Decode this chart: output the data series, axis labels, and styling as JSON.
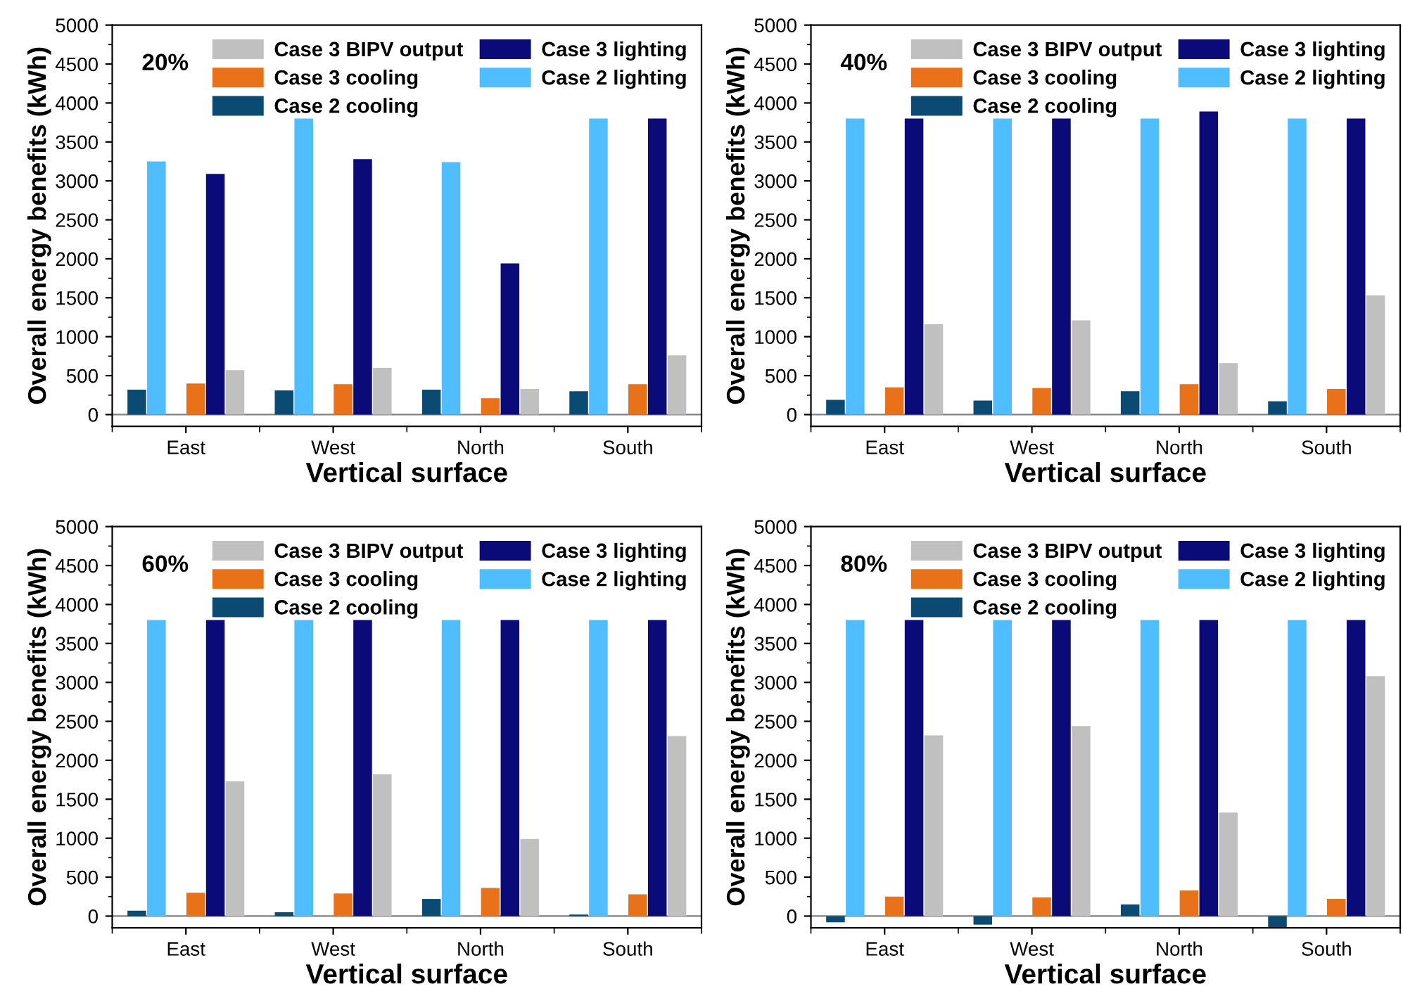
{
  "chart_data": [
    {
      "type": "bar",
      "annotations": [
        "20%"
      ],
      "xlabel": "Vertical surface",
      "ylabel": "Overall energy benefits (kWh)",
      "categories": [
        "East",
        "West",
        "North",
        "South"
      ],
      "series": [
        {
          "name": "Case 2 cooling",
          "color": "#0b4a72",
          "values": [
            320,
            310,
            320,
            300
          ]
        },
        {
          "name": "Case 2 lighting",
          "color": "#4fbdff",
          "values": [
            3250,
            3800,
            3240,
            3800
          ]
        },
        {
          "name": "Case 3 cooling",
          "color": "#e8711a",
          "values": [
            400,
            390,
            210,
            390
          ]
        },
        {
          "name": "Case 3 lighting",
          "color": "#0a0a78",
          "values": [
            3090,
            3280,
            1940,
            3800
          ]
        },
        {
          "name": "Case 3 BIPV output",
          "color": "#c0c0c0",
          "values": [
            570,
            600,
            330,
            760
          ]
        }
      ],
      "ylim": [
        -150,
        5000
      ],
      "yticks": [
        0,
        500,
        1000,
        1500,
        2000,
        2500,
        3000,
        3500,
        4000,
        4500,
        5000
      ],
      "ref_lines": [
        {
          "axis": "y",
          "value": 0,
          "color": "#808080"
        }
      ],
      "legend": "top right",
      "grid": false
    },
    {
      "type": "bar",
      "annotations": [
        "40%"
      ],
      "xlabel": "Vertical surface",
      "ylabel": "Overall energy benefits (kWh)",
      "categories": [
        "East",
        "West",
        "North",
        "South"
      ],
      "series": [
        {
          "name": "Case 2 cooling",
          "color": "#0b4a72",
          "values": [
            190,
            180,
            300,
            170
          ]
        },
        {
          "name": "Case 2 lighting",
          "color": "#4fbdff",
          "values": [
            3800,
            3800,
            3800,
            3800
          ]
        },
        {
          "name": "Case 3 cooling",
          "color": "#e8711a",
          "values": [
            350,
            340,
            390,
            330
          ]
        },
        {
          "name": "Case 3 lighting",
          "color": "#0a0a78",
          "values": [
            3800,
            3800,
            3890,
            3800
          ]
        },
        {
          "name": "Case 3 BIPV output",
          "color": "#c0c0c0",
          "values": [
            1160,
            1210,
            660,
            1530
          ]
        }
      ],
      "ylim": [
        -150,
        5000
      ],
      "yticks": [
        0,
        500,
        1000,
        1500,
        2000,
        2500,
        3000,
        3500,
        4000,
        4500,
        5000
      ],
      "ref_lines": [
        {
          "axis": "y",
          "value": 0,
          "color": "#808080"
        }
      ],
      "legend": "top right",
      "grid": false
    },
    {
      "type": "bar",
      "annotations": [
        "60%"
      ],
      "xlabel": "Vertical surface",
      "ylabel": "Overall energy benefits (kWh)",
      "categories": [
        "East",
        "West",
        "North",
        "South"
      ],
      "series": [
        {
          "name": "Case 2 cooling",
          "color": "#0b4a72",
          "values": [
            70,
            50,
            220,
            20
          ]
        },
        {
          "name": "Case 2 lighting",
          "color": "#4fbdff",
          "values": [
            3800,
            3800,
            3800,
            3800
          ]
        },
        {
          "name": "Case 3 cooling",
          "color": "#e8711a",
          "values": [
            300,
            290,
            360,
            280
          ]
        },
        {
          "name": "Case 3 lighting",
          "color": "#0a0a78",
          "values": [
            3800,
            3800,
            3800,
            3800
          ]
        },
        {
          "name": "Case 3 BIPV output",
          "color": "#c0c0c0",
          "values": [
            1730,
            1820,
            990,
            2310
          ]
        }
      ],
      "ylim": [
        -150,
        5000
      ],
      "yticks": [
        0,
        500,
        1000,
        1500,
        2000,
        2500,
        3000,
        3500,
        4000,
        4500,
        5000
      ],
      "ref_lines": [
        {
          "axis": "y",
          "value": 0,
          "color": "#808080"
        }
      ],
      "legend": "top right",
      "grid": false
    },
    {
      "type": "bar",
      "annotations": [
        "80%"
      ],
      "xlabel": "Vertical surface",
      "ylabel": "Overall energy benefits (kWh)",
      "categories": [
        "East",
        "West",
        "North",
        "South"
      ],
      "series": [
        {
          "name": "Case 2 cooling",
          "color": "#0b4a72",
          "values": [
            -80,
            -110,
            150,
            -140
          ]
        },
        {
          "name": "Case 2 lighting",
          "color": "#4fbdff",
          "values": [
            3800,
            3800,
            3800,
            3800
          ]
        },
        {
          "name": "Case 3 cooling",
          "color": "#e8711a",
          "values": [
            250,
            240,
            330,
            220
          ]
        },
        {
          "name": "Case 3 lighting",
          "color": "#0a0a78",
          "values": [
            3800,
            3800,
            3800,
            3800
          ]
        },
        {
          "name": "Case 3 BIPV output",
          "color": "#c0c0c0",
          "values": [
            2320,
            2440,
            1330,
            3080
          ]
        }
      ],
      "ylim": [
        -150,
        5000
      ],
      "yticks": [
        0,
        500,
        1000,
        1500,
        2000,
        2500,
        3000,
        3500,
        4000,
        4500,
        5000
      ],
      "ref_lines": [
        {
          "axis": "y",
          "value": 0,
          "color": "#808080"
        }
      ],
      "legend": "top right",
      "grid": false
    }
  ]
}
